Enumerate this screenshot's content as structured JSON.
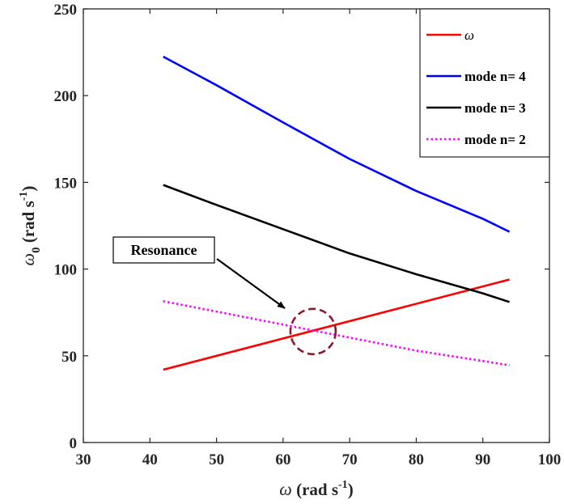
{
  "chart_data": {
    "type": "line",
    "xlim": [
      30,
      100
    ],
    "ylim": [
      0,
      250
    ],
    "xticks": [
      30,
      40,
      50,
      60,
      70,
      80,
      90,
      100
    ],
    "yticks": [
      0,
      50,
      100,
      150,
      200,
      250
    ],
    "xlabel": {
      "symbol": "ω",
      "text": "(rad s",
      "sup": "-1",
      "close": ")"
    },
    "ylabel": {
      "symbol": "ω",
      "sub": "0",
      "text": "(rad s",
      "sup": "-1",
      "close": ")"
    },
    "grid": false,
    "legend_position": "top-right",
    "series": [
      {
        "name": "ω",
        "legend_italic": true,
        "color": "#ff0000",
        "style": "solid",
        "x": [
          42,
          94
        ],
        "y": [
          42,
          94
        ]
      },
      {
        "name": "mode n= 4",
        "color": "#0000ff",
        "style": "solid",
        "x": [
          42,
          50,
          60,
          70,
          80,
          90,
          94
        ],
        "y": [
          222.5,
          206,
          184.5,
          163.5,
          145,
          129,
          121.5
        ]
      },
      {
        "name": "mode n= 3",
        "color": "#000000",
        "style": "solid",
        "x": [
          42,
          50,
          60,
          70,
          80,
          90,
          94
        ],
        "y": [
          148.5,
          137,
          123,
          109,
          97,
          86,
          81
        ]
      },
      {
        "name": "mode n= 2",
        "color": "#ff00ff",
        "style": "dotted",
        "x": [
          42,
          50,
          60,
          70,
          80,
          90,
          94
        ],
        "y": [
          81.5,
          75.5,
          68,
          60.5,
          53,
          47,
          44.5
        ]
      }
    ],
    "annotation": {
      "text": "Resonance",
      "target": {
        "x": 64.5,
        "y": 64
      },
      "circle_color": "#8b1a2b"
    }
  }
}
